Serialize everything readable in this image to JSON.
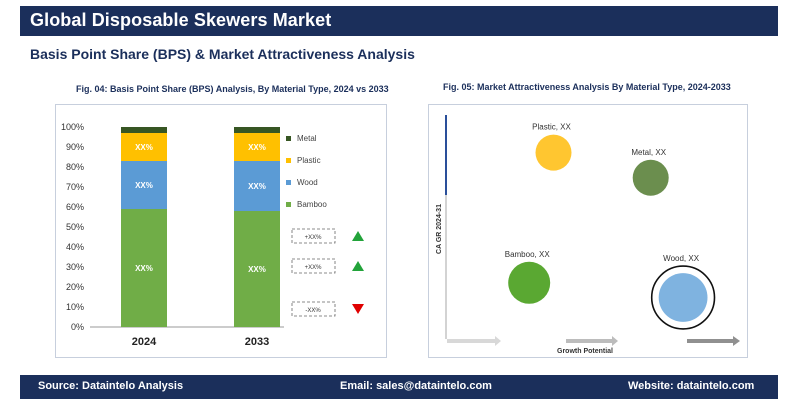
{
  "header": {
    "title": "Global Disposable Skewers Market",
    "subtitle": "Basis Point Share (BPS) & Market Attractiveness Analysis"
  },
  "figures": {
    "fig4_caption": "Fig. 04: Basis Point Share (BPS) Analysis, By Material Type, 2024 vs 2033",
    "fig5_caption": "Fig. 05: Market Attractiveness Analysis By Material Type, 2024-2033"
  },
  "chart_data": [
    {
      "type": "bar",
      "stacked": true,
      "categories": [
        "2024",
        "2033"
      ],
      "ylim": [
        0,
        100
      ],
      "yticks": [
        "0%",
        "10%",
        "20%",
        "30%",
        "40%",
        "50%",
        "60%",
        "70%",
        "80%",
        "90%",
        "100%"
      ],
      "series": [
        {
          "name": "Bamboo",
          "color": "#70ad47",
          "values": [
            59,
            58
          ],
          "labels": [
            "XX%",
            "XX%"
          ]
        },
        {
          "name": "Wood",
          "color": "#5b9bd5",
          "values": [
            24,
            25
          ],
          "labels": [
            "XX%",
            "XX%"
          ]
        },
        {
          "name": "Plastic",
          "color": "#ffc000",
          "values": [
            14,
            14
          ],
          "labels": [
            "XX%",
            "XX%"
          ]
        },
        {
          "name": "Metal",
          "color": "#375623",
          "values": [
            3,
            3
          ],
          "labels": [
            "",
            ""
          ]
        }
      ],
      "legend": [
        "Metal",
        "Plastic",
        "Wood",
        "Bamboo"
      ],
      "legend_position": "right",
      "bps_changes": [
        {
          "label": "+XX%",
          "direction": "up",
          "color": "#22a33a"
        },
        {
          "label": "+XX%",
          "direction": "up",
          "color": "#22a33a"
        },
        {
          "label": "-XX%",
          "direction": "down",
          "color": "#e00000"
        }
      ]
    },
    {
      "type": "scatter",
      "xlabel": "Growth Potential",
      "ylabel": "CA GR 2024-31",
      "points": [
        {
          "name": "Plastic",
          "label": "Plastic, XX",
          "x": 0.35,
          "y": 0.84,
          "color": "#ffc630",
          "size": 0.9
        },
        {
          "name": "Metal",
          "label": "Metal, XX",
          "x": 0.71,
          "y": 0.72,
          "color": "#6b8e4e",
          "size": 0.9
        },
        {
          "name": "Bamboo",
          "label": "Bamboo, XX",
          "x": 0.26,
          "y": 0.22,
          "color": "#5aa832",
          "size": 1.05
        },
        {
          "name": "Wood",
          "label": "Wood, XX",
          "x": 0.83,
          "y": 0.15,
          "color": "#7fb3e0",
          "size": 1.22,
          "highlight": true
        }
      ]
    }
  ],
  "footer": {
    "source": "Source: Dataintelo  Analysis",
    "email": "Email: sales@dataintelo.com",
    "website": "Website: dataintelo.com"
  }
}
